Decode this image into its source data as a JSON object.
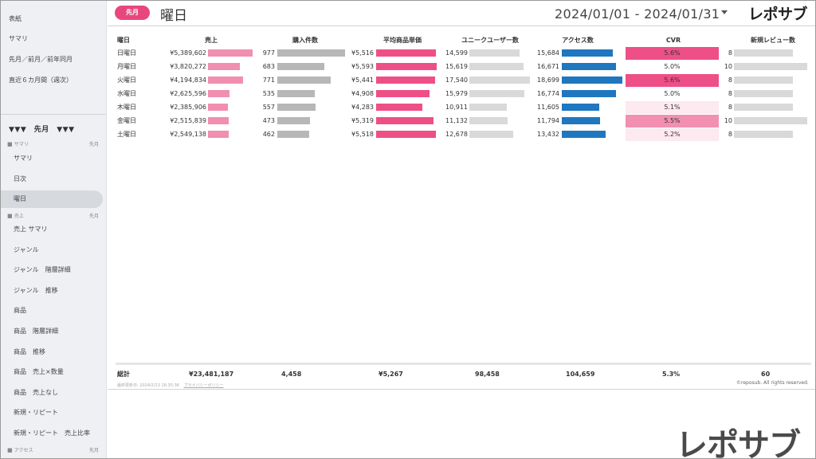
{
  "sidebar": {
    "top_items": [
      "表紙",
      "サマリ",
      "先月／前月／前年同月",
      "直近６カ月間（週次）"
    ],
    "month_header": "▼▼▼　先月　▼▼▼",
    "section_summary": {
      "label": "サマリ",
      "period": "先月"
    },
    "summary_items": [
      "サマリ",
      "日次",
      "曜日"
    ],
    "section_sales": {
      "label": "売上",
      "period": "先月"
    },
    "sales_items": [
      "売上 サマリ",
      "ジャンル",
      "ジャンル　階層詳細",
      "ジャンル　推移",
      "商品",
      "商品　階層詳細",
      "商品　推移",
      "商品　売上×数量",
      "商品　売上なし",
      "新規・リピート",
      "新規・リピート　売上比率"
    ],
    "section_access": {
      "label": "アクセス",
      "period": "先月"
    }
  },
  "header": {
    "pill": "先月",
    "title": "曜日",
    "date_range": "2024/01/01 - 2024/01/31",
    "logo": "レポサブ"
  },
  "table": {
    "headers": [
      "曜日",
      "売上",
      "購入件数",
      "平均商品単価",
      "ユニークユーザー数",
      "アクセス数",
      "CVR",
      "新規レビュー数"
    ],
    "rows": [
      {
        "day": "日曜日",
        "sales": "¥5,389,602",
        "sales_v": 5389602,
        "orders": "977",
        "orders_v": 977,
        "price": "¥5,516",
        "price_v": 5516,
        "uu": "14,599",
        "uu_v": 14599,
        "access": "15,684",
        "access_v": 15684,
        "cvr": "5.6%",
        "cvr_v": 5.6,
        "reviews": "8",
        "reviews_v": 8
      },
      {
        "day": "月曜日",
        "sales": "¥3,820,272",
        "sales_v": 3820272,
        "orders": "683",
        "orders_v": 683,
        "price": "¥5,593",
        "price_v": 5593,
        "uu": "15,619",
        "uu_v": 15619,
        "access": "16,671",
        "access_v": 16671,
        "cvr": "5.0%",
        "cvr_v": 5.0,
        "reviews": "10",
        "reviews_v": 10
      },
      {
        "day": "火曜日",
        "sales": "¥4,194,834",
        "sales_v": 4194834,
        "orders": "771",
        "orders_v": 771,
        "price": "¥5,441",
        "price_v": 5441,
        "uu": "17,540",
        "uu_v": 17540,
        "access": "18,699",
        "access_v": 18699,
        "cvr": "5.6%",
        "cvr_v": 5.6,
        "reviews": "8",
        "reviews_v": 8
      },
      {
        "day": "水曜日",
        "sales": "¥2,625,596",
        "sales_v": 2625596,
        "orders": "535",
        "orders_v": 535,
        "price": "¥4,908",
        "price_v": 4908,
        "uu": "15,979",
        "uu_v": 15979,
        "access": "16,774",
        "access_v": 16774,
        "cvr": "5.0%",
        "cvr_v": 5.0,
        "reviews": "8",
        "reviews_v": 8
      },
      {
        "day": "木曜日",
        "sales": "¥2,385,906",
        "sales_v": 2385906,
        "orders": "557",
        "orders_v": 557,
        "price": "¥4,283",
        "price_v": 4283,
        "uu": "10,911",
        "uu_v": 10911,
        "access": "11,605",
        "access_v": 11605,
        "cvr": "5.1%",
        "cvr_v": 5.1,
        "reviews": "8",
        "reviews_v": 8
      },
      {
        "day": "金曜日",
        "sales": "¥2,515,839",
        "sales_v": 2515839,
        "orders": "473",
        "orders_v": 473,
        "price": "¥5,319",
        "price_v": 5319,
        "uu": "11,132",
        "uu_v": 11132,
        "access": "11,794",
        "access_v": 11794,
        "cvr": "5.5%",
        "cvr_v": 5.5,
        "reviews": "10",
        "reviews_v": 10
      },
      {
        "day": "土曜日",
        "sales": "¥2,549,138",
        "sales_v": 2549138,
        "orders": "462",
        "orders_v": 462,
        "price": "¥5,518",
        "price_v": 5518,
        "uu": "12,678",
        "uu_v": 12678,
        "access": "13,432",
        "access_v": 13432,
        "cvr": "5.2%",
        "cvr_v": 5.2,
        "reviews": "8",
        "reviews_v": 8
      }
    ],
    "totals": {
      "label": "総計",
      "sales": "¥23,481,187",
      "orders": "4,458",
      "price": "¥5,267",
      "uu": "98,458",
      "access": "104,659",
      "cvr": "5.3%",
      "reviews": "60"
    }
  },
  "colors": {
    "pink": "#f08fb0",
    "pink_strong": "#ee4f86",
    "gray": "#b7b7b7",
    "gray_light": "#d9d9d9",
    "blue": "#1f77c0",
    "cvr_high": "#ee4f86",
    "cvr_mid": "#f38fb1",
    "cvr_low": "#fde9f0"
  },
  "footer": {
    "updated": "最終更新日: 2024/2/13 16:35:36",
    "privacy": "プライバシーポリシー",
    "copyright": "©reposub. All rights reserved."
  },
  "watermark": "レポサブ"
}
